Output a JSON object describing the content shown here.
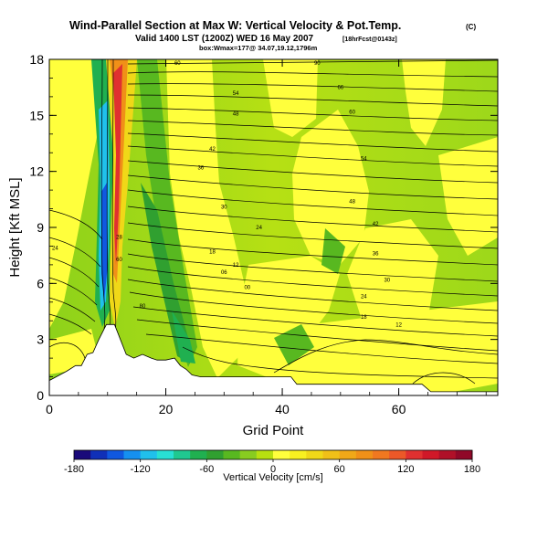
{
  "chart_data": {
    "type": "heatmap",
    "title": "Wind-Parallel Section at Max W: Vertical Velocity & Pot.Temp.",
    "title_mark": "(C)",
    "subtitle": "Valid 1400 LST (1200Z) WED 16 May 2007",
    "subtitle_tag": "[18hrFcst@0143z]",
    "box_info": "box:Wmax=177@ 34.07,19.12,1796m",
    "xlabel": "Grid Point",
    "ylabel": "Height [Kft MSL]",
    "x_ticks": [
      "0",
      "20",
      "40",
      "60"
    ],
    "y_ticks": [
      "0",
      "3",
      "6",
      "9",
      "12",
      "15",
      "18"
    ],
    "xlim": [
      0,
      77
    ],
    "ylim": [
      0,
      18
    ],
    "colorbar": {
      "label": "Vertical Velocity [cm/s]",
      "ticks": [
        "-180",
        "-120",
        "-60",
        "0",
        "60",
        "120",
        "180"
      ],
      "range": [
        -180,
        180
      ],
      "bands": [
        -180,
        -165,
        -150,
        -135,
        -120,
        -105,
        -90,
        -75,
        -60,
        -45,
        -30,
        -15,
        0,
        15,
        30,
        45,
        60,
        75,
        90,
        105,
        120,
        135,
        150,
        165,
        180
      ],
      "colors": [
        "#1a0a7a",
        "#1030b8",
        "#1058e0",
        "#1690f0",
        "#20c0ec",
        "#28e0d4",
        "#20c890",
        "#20b050",
        "#30a030",
        "#58b820",
        "#88cc20",
        "#b8e010",
        "#ffff3c",
        "#f8f020",
        "#f0d818",
        "#f0c018",
        "#f0a818",
        "#f09018",
        "#f07820",
        "#ec5828",
        "#e03030",
        "#d01828",
        "#b01028",
        "#900828"
      ]
    },
    "terrain_ft": [
      [
        0,
        0.8
      ],
      [
        3,
        1.3
      ],
      [
        4.5,
        1.6
      ],
      [
        5.5,
        1.6
      ],
      [
        6.5,
        2.2
      ],
      [
        7.5,
        2.3
      ],
      [
        8.5,
        3.0
      ],
      [
        9.8,
        3.8
      ],
      [
        11.2,
        3.8
      ],
      [
        12.2,
        3.0
      ],
      [
        13.2,
        2.2
      ],
      [
        14.5,
        2.0
      ],
      [
        16,
        2.2
      ],
      [
        17.5,
        2.0
      ],
      [
        18.5,
        1.9
      ],
      [
        20,
        1.9
      ],
      [
        21.5,
        2.0
      ],
      [
        22.5,
        1.6
      ],
      [
        23.5,
        1.4
      ],
      [
        24.5,
        1.1
      ],
      [
        26,
        1.0
      ],
      [
        28,
        1.0
      ],
      [
        30,
        1.0
      ],
      [
        34,
        1.0
      ],
      [
        38,
        1.0
      ],
      [
        41.5,
        1.0
      ],
      [
        42.5,
        0.6
      ],
      [
        46,
        0.6
      ],
      [
        52,
        0.6
      ],
      [
        58,
        0.6
      ],
      [
        64,
        0.6
      ],
      [
        65.5,
        0.2
      ],
      [
        70,
        0.2
      ],
      [
        77,
        0.2
      ]
    ],
    "isentrope_labels": [
      {
        "text": "60",
        "x": 22,
        "y": 17.7
      },
      {
        "text": "54",
        "x": 32,
        "y": 16.1
      },
      {
        "text": "48",
        "x": 32,
        "y": 15.0
      },
      {
        "text": "42",
        "x": 28,
        "y": 13.1
      },
      {
        "text": "36",
        "x": 26,
        "y": 12.1
      },
      {
        "text": "30",
        "x": 30,
        "y": 10.0
      },
      {
        "text": "24",
        "x": 36,
        "y": 8.9
      },
      {
        "text": "18",
        "x": 28,
        "y": 7.6
      },
      {
        "text": "12",
        "x": 32,
        "y": 6.9
      },
      {
        "text": "06",
        "x": 30,
        "y": 6.5
      },
      {
        "text": "00",
        "x": 34,
        "y": 5.7
      },
      {
        "text": "60",
        "x": 12,
        "y": 7.2
      },
      {
        "text": "80",
        "x": 16,
        "y": 4.7
      },
      {
        "text": "28",
        "x": 12,
        "y": 8.4
      },
      {
        "text": "90",
        "x": 46,
        "y": 17.7
      },
      {
        "text": "66",
        "x": 50,
        "y": 16.4
      },
      {
        "text": "60",
        "x": 52,
        "y": 15.1
      },
      {
        "text": "54",
        "x": 54,
        "y": 12.6
      },
      {
        "text": "48",
        "x": 52,
        "y": 10.3
      },
      {
        "text": "42",
        "x": 56,
        "y": 9.1
      },
      {
        "text": "36",
        "x": 56,
        "y": 7.5
      },
      {
        "text": "30",
        "x": 58,
        "y": 6.1
      },
      {
        "text": "24",
        "x": 54,
        "y": 5.2
      },
      {
        "text": "18",
        "x": 54,
        "y": 4.1
      },
      {
        "text": "12",
        "x": 60,
        "y": 3.7
      },
      {
        "text": "24",
        "x": 1,
        "y": 7.8
      }
    ]
  }
}
